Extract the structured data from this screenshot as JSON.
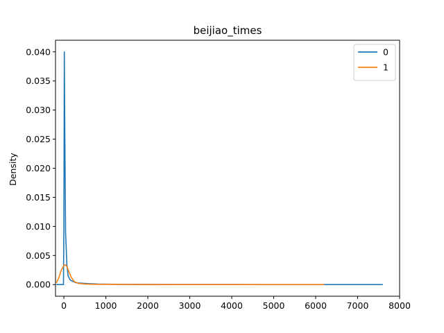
{
  "chart_data": {
    "type": "line",
    "title": "beijiao_times",
    "xlabel": "",
    "ylabel": "Density",
    "xlim": [
      -200,
      8000
    ],
    "ylim": [
      -0.002,
      0.042
    ],
    "x_ticks": [
      0,
      1000,
      2000,
      3000,
      4000,
      5000,
      6000,
      7000,
      8000
    ],
    "x_tick_labels": [
      "0",
      "1000",
      "2000",
      "3000",
      "4000",
      "5000",
      "6000",
      "7000",
      "8000"
    ],
    "y_ticks": [
      0.0,
      0.005,
      0.01,
      0.015,
      0.02,
      0.025,
      0.03,
      0.035,
      0.04
    ],
    "y_tick_labels": [
      "0.000",
      "0.005",
      "0.010",
      "0.015",
      "0.020",
      "0.025",
      "0.030",
      "0.035",
      "0.040"
    ],
    "grid": false,
    "legend_position": "top-right",
    "series": [
      {
        "name": "0",
        "color": "#1f77b4",
        "x": [
          -180,
          -10,
          0,
          10,
          20,
          40,
          70,
          100,
          150,
          200,
          300,
          500,
          800,
          1200,
          2000,
          3000,
          4000,
          5000,
          6000,
          7000,
          7600
        ],
        "y": [
          0.0,
          0.0,
          0.01,
          0.04,
          0.028,
          0.009,
          0.0035,
          0.0015,
          0.0008,
          0.0006,
          0.0003,
          0.0002,
          0.0001,
          5e-05,
          3e-05,
          2e-05,
          2e-05,
          1e-05,
          1e-05,
          5e-06,
          0.0
        ]
      },
      {
        "name": "1",
        "color": "#ff7f0e",
        "x": [
          -180,
          -120,
          -60,
          0,
          40,
          80,
          120,
          180,
          250,
          350,
          500,
          700,
          1000,
          1500,
          2500,
          3500,
          4500,
          5500,
          6200
        ],
        "y": [
          0.0003,
          0.0012,
          0.0025,
          0.0033,
          0.0034,
          0.003,
          0.0022,
          0.0012,
          0.0005,
          0.0002,
          0.0001,
          5e-05,
          3e-05,
          2e-05,
          1e-05,
          1e-05,
          5e-06,
          3e-06,
          0.0
        ]
      }
    ]
  }
}
